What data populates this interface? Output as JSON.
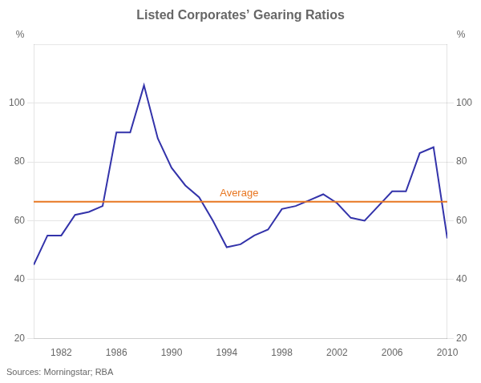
{
  "chart_data": {
    "type": "line",
    "title": "Listed Corporates’ Gearing Ratios",
    "source": "Sources: Morningstar; RBA",
    "ylabel": "%",
    "y2label": "%",
    "x": [
      1980,
      1981,
      1982,
      1983,
      1984,
      1985,
      1986,
      1987,
      1988,
      1989,
      1990,
      1991,
      1992,
      1993,
      1994,
      1995,
      1996,
      1997,
      1998,
      1999,
      2000,
      2001,
      2002,
      2003,
      2004,
      2005,
      2006,
      2007,
      2008,
      2009,
      2010
    ],
    "values": [
      45,
      55,
      55,
      62,
      63,
      65,
      90,
      90,
      106,
      88,
      78,
      72,
      68,
      60,
      51,
      52,
      55,
      57,
      64,
      65,
      67,
      69,
      66,
      61,
      60,
      65,
      70,
      70,
      83,
      85,
      54
    ],
    "color": "#3333AA",
    "xlim": [
      1980,
      2010
    ],
    "xticks": [
      1982,
      1986,
      1990,
      1994,
      1998,
      2002,
      2006,
      2010
    ],
    "ylim": [
      20,
      120
    ],
    "yticks": [
      20,
      40,
      60,
      80,
      100
    ],
    "y2lim": [
      20,
      120
    ],
    "y2ticks": [
      20,
      40,
      60,
      80,
      100
    ],
    "grid": "y",
    "annotations": [
      {
        "type": "hline",
        "y": 66.5,
        "text": "Average",
        "color": "#E87722"
      }
    ]
  }
}
